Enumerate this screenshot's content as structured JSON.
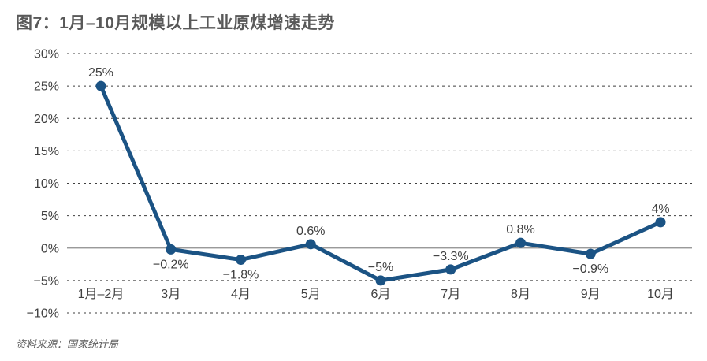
{
  "title": "图7：1月–10月规模以上工业原煤增速走势",
  "source": "资料来源：国家统计局",
  "colors": {
    "background": "#ffffff",
    "title_text": "#595959",
    "line": "#1B5384",
    "marker": "#1B5384",
    "axis_text": "#404040",
    "data_label_text": "#404040",
    "gridline": "#3f3f3f",
    "zero_line": "#8c8c8c",
    "source_text": "#595959"
  },
  "chart_data": {
    "type": "line",
    "title": "图7：1月–10月规模以上工业原煤增速走势",
    "categories": [
      "1月–2月",
      "3月",
      "4月",
      "5月",
      "6月",
      "7月",
      "8月",
      "9月",
      "10月"
    ],
    "values": [
      25,
      -0.2,
      -1.8,
      0.6,
      -5,
      -3.3,
      0.8,
      -0.9,
      4
    ],
    "data_labels": [
      "25%",
      "−0.2%",
      "−1.8%",
      "0.6%",
      "−5%",
      "−3.3%",
      "0.8%",
      "−0.9%",
      "4%"
    ],
    "data_label_positions": [
      "above",
      "below",
      "below",
      "above",
      "above",
      "above",
      "above",
      "below",
      "above"
    ],
    "xlabel": "",
    "ylabel": "",
    "ylim": [
      -10,
      30
    ],
    "ytick_step": 5,
    "ytick_labels": [
      "30%",
      "25%",
      "20%",
      "15%",
      "10%",
      "5%",
      "0%",
      "−5%",
      "−10%"
    ],
    "grid": "horizontal-dashed, zero-line-solid",
    "legend": "none",
    "series_name": "规模以上工业原煤增速"
  }
}
